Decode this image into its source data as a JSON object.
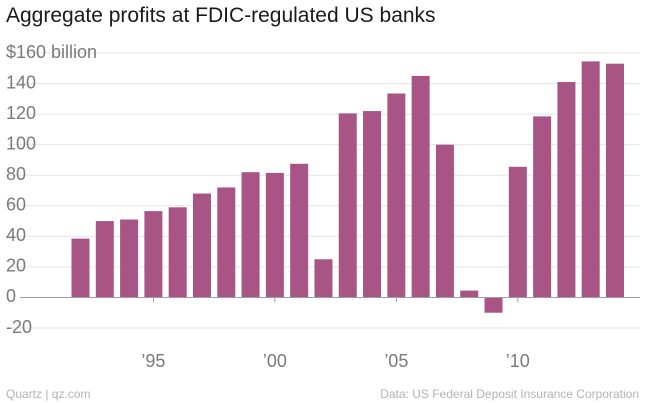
{
  "chart_data": {
    "type": "bar",
    "title": "Aggregate profits at FDIC-regulated US banks",
    "ylabel": "",
    "xlabel": "",
    "y_tick_labels": [
      {
        "value": 160,
        "label": "$160 billion"
      },
      {
        "value": 140,
        "label": "140"
      },
      {
        "value": 120,
        "label": "120"
      },
      {
        "value": 100,
        "label": "100"
      },
      {
        "value": 80,
        "label": "80"
      },
      {
        "value": 60,
        "label": "60"
      },
      {
        "value": 40,
        "label": "40"
      },
      {
        "value": 20,
        "label": "20"
      },
      {
        "value": 0,
        "label": "0"
      },
      {
        "value": -20,
        "label": "-20"
      }
    ],
    "x_tick_labels": [
      {
        "year": 1995,
        "label": "’95"
      },
      {
        "year": 2000,
        "label": "’00"
      },
      {
        "year": 2005,
        "label": "’05"
      },
      {
        "year": 2010,
        "label": "’10"
      }
    ],
    "ylim": [
      -20,
      160
    ],
    "grid": true,
    "bar_color": "#a85586",
    "categories": [
      1992,
      1993,
      1994,
      1995,
      1996,
      1997,
      1998,
      1999,
      2000,
      2001,
      2002,
      2003,
      2004,
      2005,
      2006,
      2007,
      2008,
      2009,
      2010,
      2011,
      2012,
      2013,
      2014
    ],
    "values": [
      38.5,
      50,
      51,
      56.5,
      59,
      68,
      72,
      82,
      81.5,
      87.5,
      25,
      120.5,
      122,
      133.5,
      145,
      100,
      4.5,
      -10,
      85.5,
      118.5,
      141,
      154.5,
      153
    ]
  },
  "footer": {
    "source": "Quartz | qz.com",
    "credit": "Data: US Federal Deposit Insurance Corporation"
  }
}
